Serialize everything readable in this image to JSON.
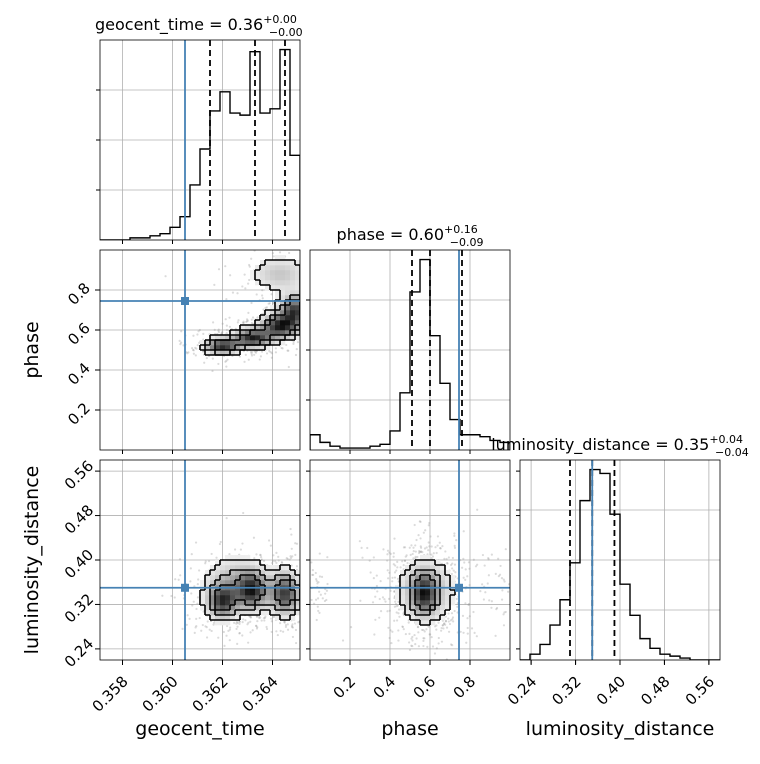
{
  "chart_data": {
    "type": "corner",
    "parameters": [
      "geocent_time",
      "phase",
      "luminosity_distance"
    ],
    "truths": {
      "geocent_time": 0.3605,
      "phase": 0.745,
      "luminosity_distance": 0.35
    },
    "titles": [
      {
        "param": "geocent_time",
        "text": "geocent_time = 0.36",
        "sup": "+0.00",
        "sub": "−0.00"
      },
      {
        "param": "phase",
        "text": "phase = 0.60",
        "sup": "+0.16",
        "sub": "−0.09"
      },
      {
        "param": "luminosity_distance",
        "text": "luminosity_distance = 0.35",
        "sup": "+0.04",
        "sub": "−0.04"
      }
    ],
    "axes": {
      "geocent_time": {
        "label": "geocent_time",
        "range": [
          0.3571,
          0.3651
        ],
        "ticks": [
          0.358,
          0.36,
          0.362,
          0.364
        ],
        "tick_labels": [
          "0.358",
          "0.360",
          "0.362",
          "0.364"
        ]
      },
      "phase": {
        "label": "phase",
        "range": [
          0.0,
          1.0
        ],
        "ticks": [
          0.2,
          0.4,
          0.6,
          0.8
        ],
        "tick_labels": [
          "0.2",
          "0.4",
          "0.6",
          "0.8"
        ]
      },
      "luminosity_distance": {
        "label": "luminosity_distance",
        "range": [
          0.22,
          0.58
        ],
        "ticks": [
          0.24,
          0.32,
          0.4,
          0.48,
          0.56
        ],
        "tick_labels": [
          "0.24",
          "0.32",
          "0.40",
          "0.48",
          "0.56"
        ]
      }
    },
    "histograms": {
      "geocent_time": {
        "bin_edges": [
          0.3571,
          0.3575,
          0.3579,
          0.3583,
          0.3587,
          0.3591,
          0.3595,
          0.3599,
          0.3603,
          0.3607,
          0.3611,
          0.3615,
          0.3619,
          0.3623,
          0.3627,
          0.3631,
          0.3635,
          0.3639,
          0.3643,
          0.3647,
          0.3651
        ],
        "counts": [
          0,
          0,
          0,
          1,
          1,
          2,
          3,
          6,
          11,
          26,
          43,
          61,
          70,
          60,
          59,
          89,
          60,
          62,
          90,
          40
        ],
        "quantiles": [
          0.3615,
          0.3633,
          0.3645
        ]
      },
      "phase": {
        "bin_edges": [
          0.0,
          0.05,
          0.1,
          0.15,
          0.2,
          0.25,
          0.3,
          0.35,
          0.4,
          0.45,
          0.5,
          0.55,
          0.6,
          0.65,
          0.7,
          0.75,
          0.8,
          0.85,
          0.9,
          0.95,
          1.0
        ],
        "counts": [
          8,
          4,
          2,
          1,
          1,
          1,
          2,
          3,
          10,
          30,
          83,
          100,
          60,
          35,
          16,
          8,
          8,
          7,
          5,
          4
        ],
        "quantiles": [
          0.51,
          0.6,
          0.76
        ]
      },
      "luminosity_distance": {
        "bin_edges": [
          0.22,
          0.238,
          0.256,
          0.274,
          0.292,
          0.31,
          0.328,
          0.346,
          0.364,
          0.382,
          0.4,
          0.418,
          0.436,
          0.454,
          0.472,
          0.49,
          0.508,
          0.526,
          0.544,
          0.562,
          0.58
        ],
        "counts": [
          0,
          3,
          8,
          18,
          31,
          50,
          82,
          98,
          96,
          75,
          39,
          23,
          11,
          6,
          3,
          2,
          1,
          0,
          0,
          0
        ],
        "quantiles": [
          0.31,
          0.35,
          0.39
        ]
      }
    },
    "density_2d": [
      {
        "x": "geocent_time",
        "y": "phase",
        "modes": [
          {
            "x": 0.362,
            "y": 0.52,
            "sx": 0.00045,
            "sy": 0.025,
            "w": 1.0
          },
          {
            "x": 0.3632,
            "y": 0.56,
            "sx": 0.0005,
            "sy": 0.03,
            "w": 1.0
          },
          {
            "x": 0.3643,
            "y": 0.62,
            "sx": 0.0005,
            "sy": 0.04,
            "w": 1.0
          },
          {
            "x": 0.3649,
            "y": 0.7,
            "sx": 0.0004,
            "sy": 0.05,
            "w": 0.9
          },
          {
            "x": 0.3643,
            "y": 0.88,
            "sx": 0.0008,
            "sy": 0.06,
            "w": 0.35
          }
        ]
      },
      {
        "x": "geocent_time",
        "y": "luminosity_distance",
        "modes": [
          {
            "x": 0.362,
            "y": 0.325,
            "sx": 0.0004,
            "sy": 0.02,
            "w": 1.0
          },
          {
            "x": 0.3632,
            "y": 0.345,
            "sx": 0.0004,
            "sy": 0.022,
            "w": 1.0
          },
          {
            "x": 0.3645,
            "y": 0.34,
            "sx": 0.0004,
            "sy": 0.025,
            "w": 1.1
          },
          {
            "x": 0.3625,
            "y": 0.36,
            "sx": 0.0008,
            "sy": 0.03,
            "w": 0.5
          }
        ]
      },
      {
        "x": "phase",
        "y": "luminosity_distance",
        "modes": [
          {
            "x": 0.58,
            "y": 0.345,
            "sx": 0.09,
            "sy": 0.035,
            "w": 1.0
          },
          {
            "x": 0.57,
            "y": 0.34,
            "sx": 0.04,
            "sy": 0.025,
            "w": 1.3
          },
          {
            "x": 0.03,
            "y": 0.35,
            "sx": 0.03,
            "sy": 0.02,
            "w": 0.12
          },
          {
            "x": 0.95,
            "y": 0.35,
            "sx": 0.05,
            "sy": 0.025,
            "w": 0.1
          }
        ]
      }
    ]
  },
  "colors": {
    "truth": "#4682b4",
    "hist": "#000000",
    "grid": "#b0b0b0",
    "contour": "#000000"
  }
}
